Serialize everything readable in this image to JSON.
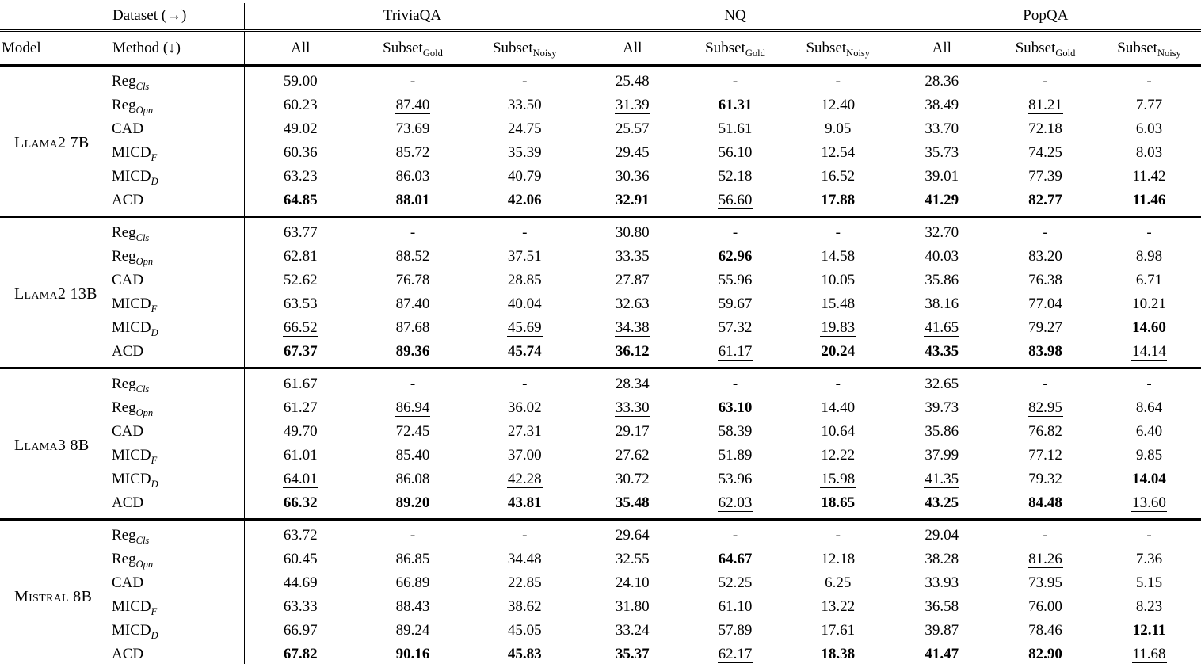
{
  "header": {
    "dataset_label": "Dataset (→)",
    "model_label": "Model",
    "method_label": "Method (↓)",
    "datasets": [
      "TriviaQA",
      "NQ",
      "PopQA"
    ],
    "subcolumns": [
      {
        "base": "All",
        "sub": ""
      },
      {
        "base": "Subset",
        "sub": "Gold"
      },
      {
        "base": "Subset",
        "sub": "Noisy"
      }
    ]
  },
  "format_markers": {
    "bold_prefix": "b:",
    "underline_prefix": "u:"
  },
  "methods": [
    {
      "base": "Reg",
      "sub": "Cls"
    },
    {
      "base": "Reg",
      "sub": "Opn"
    },
    {
      "base": "CAD",
      "sub": ""
    },
    {
      "base": "MICD",
      "sub": "F"
    },
    {
      "base": "MICD",
      "sub": "D"
    },
    {
      "base": "ACD",
      "sub": ""
    }
  ],
  "blocks": [
    {
      "model": "Llama2 7B",
      "rows": [
        {
          "cells": [
            "59.00",
            "-",
            "-",
            "25.48",
            "-",
            "-",
            "28.36",
            "-",
            "-"
          ]
        },
        {
          "cells": [
            "60.23",
            "u:87.40",
            "33.50",
            "u:31.39",
            "b:61.31",
            "12.40",
            "38.49",
            "u:81.21",
            "7.77"
          ]
        },
        {
          "cells": [
            "49.02",
            "73.69",
            "24.75",
            "25.57",
            "51.61",
            "9.05",
            "33.70",
            "72.18",
            "6.03"
          ]
        },
        {
          "cells": [
            "60.36",
            "85.72",
            "35.39",
            "29.45",
            "56.10",
            "12.54",
            "35.73",
            "74.25",
            "8.03"
          ]
        },
        {
          "cells": [
            "u:63.23",
            "86.03",
            "u:40.79",
            "30.36",
            "52.18",
            "u:16.52",
            "u:39.01",
            "77.39",
            "u:11.42"
          ]
        },
        {
          "cells": [
            "b:64.85",
            "b:88.01",
            "b:42.06",
            "b:32.91",
            "u:56.60",
            "b:17.88",
            "b:41.29",
            "b:82.77",
            "b:11.46"
          ]
        }
      ]
    },
    {
      "model": "Llama2 13B",
      "rows": [
        {
          "cells": [
            "63.77",
            "-",
            "-",
            "30.80",
            "-",
            "-",
            "32.70",
            "-",
            "-"
          ]
        },
        {
          "cells": [
            "62.81",
            "u:88.52",
            "37.51",
            "33.35",
            "b:62.96",
            "14.58",
            "40.03",
            "u:83.20",
            "8.98"
          ]
        },
        {
          "cells": [
            "52.62",
            "76.78",
            "28.85",
            "27.87",
            "55.96",
            "10.05",
            "35.86",
            "76.38",
            "6.71"
          ]
        },
        {
          "cells": [
            "63.53",
            "87.40",
            "40.04",
            "32.63",
            "59.67",
            "15.48",
            "38.16",
            "77.04",
            "10.21"
          ]
        },
        {
          "cells": [
            "u:66.52",
            "87.68",
            "u:45.69",
            "u:34.38",
            "57.32",
            "u:19.83",
            "u:41.65",
            "79.27",
            "b:14.60"
          ]
        },
        {
          "cells": [
            "b:67.37",
            "b:89.36",
            "b:45.74",
            "b:36.12",
            "u:61.17",
            "b:20.24",
            "b:43.35",
            "b:83.98",
            "u:14.14"
          ]
        }
      ]
    },
    {
      "model": "Llama3 8B",
      "rows": [
        {
          "cells": [
            "61.67",
            "-",
            "-",
            "28.34",
            "-",
            "-",
            "32.65",
            "-",
            "-"
          ]
        },
        {
          "cells": [
            "61.27",
            "u:86.94",
            "36.02",
            "u:33.30",
            "b:63.10",
            "14.40",
            "39.73",
            "u:82.95",
            "8.64"
          ]
        },
        {
          "cells": [
            "49.70",
            "72.45",
            "27.31",
            "29.17",
            "58.39",
            "10.64",
            "35.86",
            "76.82",
            "6.40"
          ]
        },
        {
          "cells": [
            "61.01",
            "85.40",
            "37.00",
            "27.62",
            "51.89",
            "12.22",
            "37.99",
            "77.12",
            "9.85"
          ]
        },
        {
          "cells": [
            "u:64.01",
            "86.08",
            "u:42.28",
            "30.72",
            "53.96",
            "u:15.98",
            "u:41.35",
            "79.32",
            "b:14.04"
          ]
        },
        {
          "cells": [
            "b:66.32",
            "b:89.20",
            "b:43.81",
            "b:35.48",
            "u:62.03",
            "b:18.65",
            "b:43.25",
            "b:84.48",
            "u:13.60"
          ]
        }
      ]
    },
    {
      "model": "Mistral 8B",
      "rows": [
        {
          "cells": [
            "63.72",
            "-",
            "-",
            "29.64",
            "-",
            "-",
            "29.04",
            "-",
            "-"
          ]
        },
        {
          "cells": [
            "60.45",
            "86.85",
            "34.48",
            "32.55",
            "b:64.67",
            "12.18",
            "38.28",
            "u:81.26",
            "7.36"
          ]
        },
        {
          "cells": [
            "44.69",
            "66.89",
            "22.85",
            "24.10",
            "52.25",
            "6.25",
            "33.93",
            "73.95",
            "5.15"
          ]
        },
        {
          "cells": [
            "63.33",
            "88.43",
            "38.62",
            "31.80",
            "61.10",
            "13.22",
            "36.58",
            "76.00",
            "8.23"
          ]
        },
        {
          "cells": [
            "u:66.97",
            "u:89.24",
            "u:45.05",
            "u:33.24",
            "57.89",
            "u:17.61",
            "u:39.87",
            "78.46",
            "b:12.11"
          ]
        },
        {
          "cells": [
            "b:67.82",
            "b:90.16",
            "b:45.83",
            "b:35.37",
            "u:62.17",
            "b:18.38",
            "b:41.47",
            "b:82.90",
            "u:11.68"
          ]
        }
      ]
    }
  ]
}
